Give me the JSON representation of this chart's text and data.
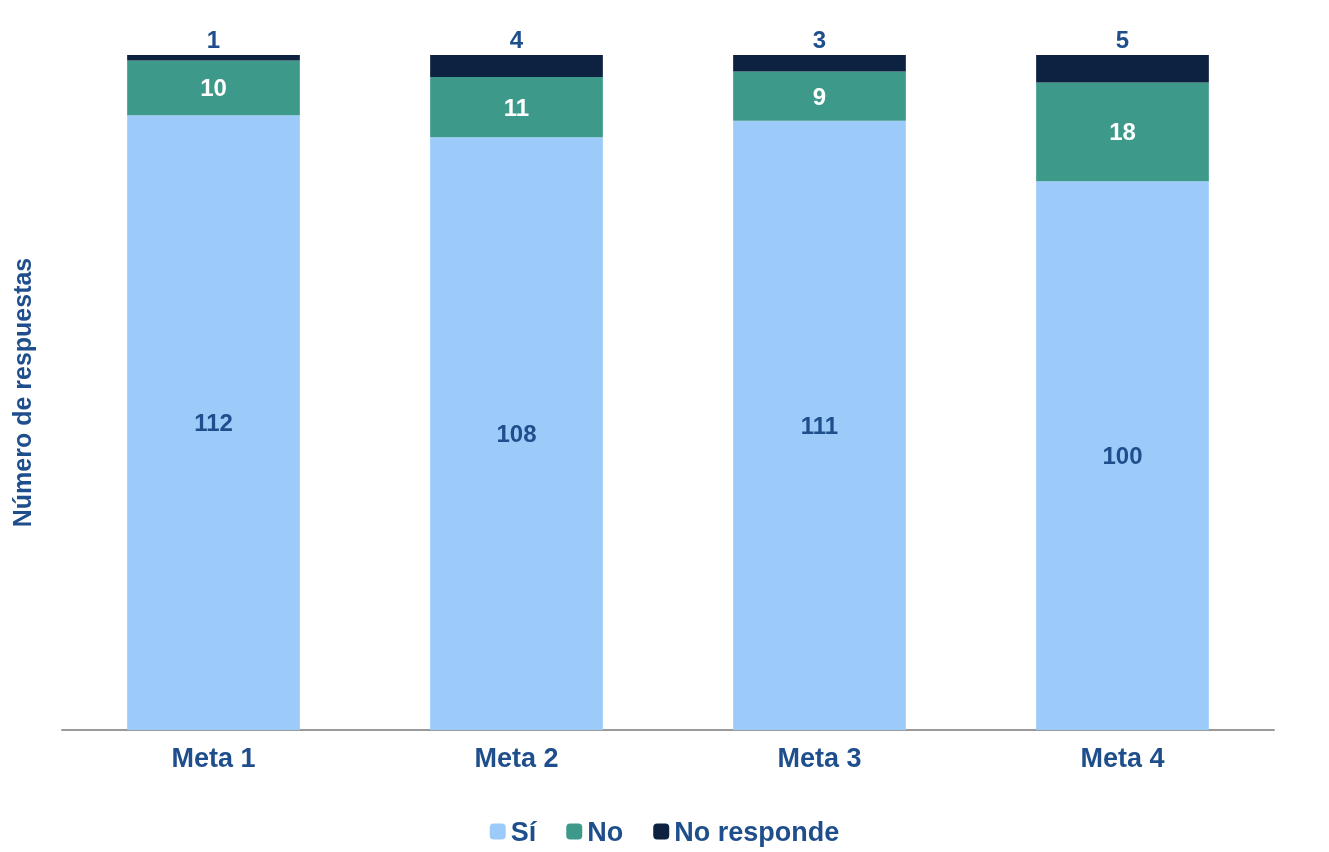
{
  "chart_data": {
    "type": "bar",
    "stacked": true,
    "data_labels": true,
    "legend": "bottom",
    "tick_labels": "x",
    "ylabel": "Número de respuestas",
    "categories": [
      "Meta 1",
      "Meta 2",
      "Meta 3",
      "Meta 4"
    ],
    "series": [
      {
        "name": "Sí",
        "color": "#9dcbf9",
        "values": [
          112,
          108,
          111,
          100
        ]
      },
      {
        "name": "No",
        "color": "#3d9a8b",
        "values": [
          10,
          11,
          9,
          18
        ]
      },
      {
        "name": "No responde",
        "color": "#0d2240",
        "values": [
          1,
          4,
          3,
          5
        ]
      }
    ]
  }
}
